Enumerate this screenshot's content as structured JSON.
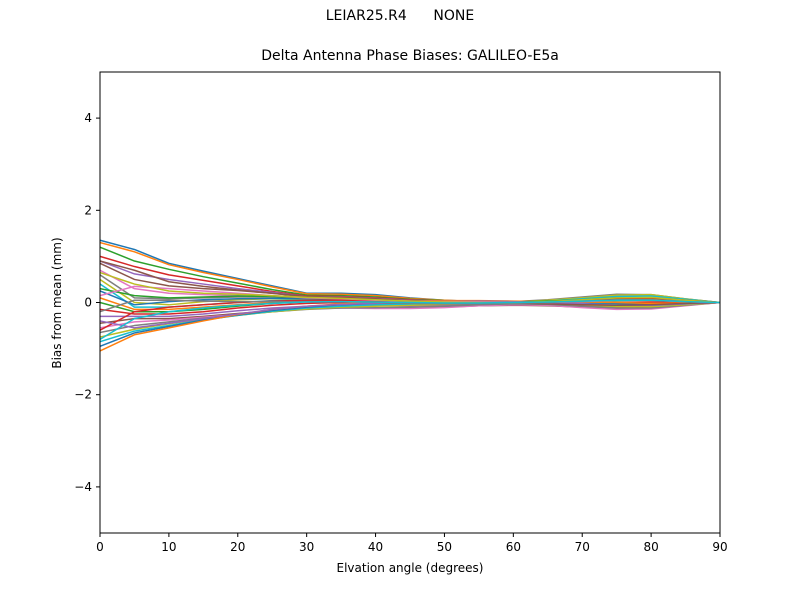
{
  "suptitle": "LEIAR25.R4      NONE",
  "chart_data": {
    "type": "line",
    "title": "Delta Antenna Phase Biases: GALILEO-E5a",
    "xlabel": "Elvation angle (degrees)",
    "ylabel": "Bias from mean (mm)",
    "xlim": [
      0,
      90
    ],
    "ylim": [
      -5,
      5
    ],
    "xticks": [
      0,
      10,
      20,
      30,
      40,
      50,
      60,
      70,
      80,
      90
    ],
    "yticks": [
      -4,
      -2,
      0,
      2,
      4
    ],
    "ytick_labels": [
      "−4",
      "−2",
      "0",
      "2",
      "4"
    ],
    "grid": false,
    "colors": [
      "#1f77b4",
      "#ff7f0e",
      "#2ca02c",
      "#d62728",
      "#9467bd",
      "#8c564b",
      "#e377c2",
      "#7f7f7f",
      "#bcbd22",
      "#17becf"
    ],
    "x": [
      0,
      5,
      10,
      15,
      20,
      25,
      30,
      35,
      40,
      45,
      50,
      55,
      60,
      65,
      70,
      75,
      80,
      85,
      90
    ],
    "series": [
      {
        "values": [
          1.35,
          1.15,
          0.85,
          0.68,
          0.52,
          0.36,
          0.2,
          0.2,
          0.17,
          0.1,
          0.05,
          0.02,
          -0.02,
          -0.06,
          -0.1,
          -0.12,
          -0.1,
          -0.05,
          0.0
        ]
      },
      {
        "values": [
          1.3,
          1.1,
          0.82,
          0.65,
          0.5,
          0.34,
          0.19,
          0.18,
          0.15,
          0.09,
          0.05,
          0.02,
          -0.01,
          -0.05,
          -0.09,
          -0.11,
          -0.09,
          -0.04,
          0.0
        ]
      },
      {
        "values": [
          1.2,
          0.9,
          0.72,
          0.56,
          0.42,
          0.28,
          0.16,
          0.15,
          0.12,
          0.07,
          0.04,
          0.02,
          0.0,
          -0.03,
          -0.06,
          -0.08,
          -0.07,
          -0.03,
          0.0
        ]
      },
      {
        "values": [
          1.0,
          0.78,
          0.6,
          0.48,
          0.36,
          0.24,
          0.14,
          0.13,
          0.1,
          0.06,
          0.03,
          0.02,
          0.01,
          0.0,
          -0.03,
          -0.05,
          -0.05,
          -0.02,
          0.0
        ]
      },
      {
        "values": [
          0.9,
          0.62,
          0.5,
          0.4,
          0.3,
          0.22,
          0.13,
          0.12,
          0.09,
          0.05,
          0.03,
          0.02,
          0.01,
          0.02,
          0.04,
          0.06,
          0.05,
          0.02,
          0.0
        ]
      },
      {
        "values": [
          0.85,
          0.5,
          0.36,
          0.3,
          0.26,
          0.2,
          0.12,
          0.1,
          0.07,
          0.04,
          0.03,
          0.02,
          0.02,
          0.04,
          0.08,
          0.12,
          0.1,
          0.05,
          0.0
        ]
      },
      {
        "values": [
          0.7,
          0.3,
          0.2,
          0.17,
          0.15,
          0.13,
          0.1,
          0.08,
          0.05,
          0.03,
          0.02,
          0.01,
          0.02,
          0.05,
          0.1,
          0.15,
          0.14,
          0.07,
          0.0
        ]
      },
      {
        "values": [
          0.6,
          0.1,
          0.08,
          0.1,
          0.12,
          0.12,
          0.1,
          0.07,
          0.04,
          0.02,
          0.01,
          0.0,
          0.02,
          0.06,
          0.12,
          0.18,
          0.17,
          0.08,
          0.0
        ]
      },
      {
        "values": [
          0.5,
          0.0,
          -0.05,
          0.02,
          0.06,
          0.08,
          0.08,
          0.06,
          0.03,
          0.01,
          0.0,
          -0.01,
          0.01,
          0.05,
          0.1,
          0.16,
          0.17,
          0.08,
          0.0
        ]
      },
      {
        "values": [
          0.4,
          -0.1,
          -0.1,
          -0.05,
          0.0,
          0.04,
          0.06,
          0.05,
          0.02,
          0.0,
          -0.01,
          -0.02,
          -0.01,
          0.03,
          0.08,
          0.13,
          0.14,
          0.07,
          0.0
        ]
      },
      {
        "values": [
          0.25,
          -0.05,
          0.02,
          0.06,
          0.08,
          0.09,
          0.09,
          0.07,
          0.04,
          0.02,
          0.01,
          0.0,
          0.0,
          0.02,
          0.05,
          0.08,
          0.08,
          0.04,
          0.0
        ]
      },
      {
        "values": [
          0.1,
          -0.15,
          -0.15,
          -0.1,
          -0.05,
          0.0,
          0.03,
          0.03,
          0.01,
          -0.01,
          -0.02,
          -0.02,
          -0.02,
          0.0,
          0.04,
          0.07,
          0.08,
          0.04,
          0.0
        ]
      },
      {
        "values": [
          0.0,
          -0.2,
          -0.2,
          -0.15,
          -0.08,
          -0.02,
          0.02,
          0.02,
          0.0,
          -0.02,
          -0.03,
          -0.03,
          -0.03,
          -0.02,
          0.01,
          0.04,
          0.05,
          0.02,
          0.0
        ]
      },
      {
        "values": [
          -0.15,
          -0.25,
          -0.25,
          -0.2,
          -0.12,
          -0.06,
          -0.02,
          0.0,
          -0.02,
          -0.04,
          -0.04,
          -0.04,
          -0.04,
          -0.03,
          -0.02,
          0.0,
          0.01,
          0.0,
          0.0
        ]
      },
      {
        "values": [
          -0.3,
          -0.3,
          -0.3,
          -0.25,
          -0.18,
          -0.12,
          -0.08,
          -0.05,
          -0.06,
          -0.07,
          -0.06,
          -0.05,
          -0.05,
          -0.05,
          -0.06,
          -0.07,
          -0.06,
          -0.03,
          0.0
        ]
      },
      {
        "values": [
          -0.45,
          -0.35,
          -0.35,
          -0.3,
          -0.24,
          -0.18,
          -0.12,
          -0.1,
          -0.12,
          -0.12,
          -0.1,
          -0.07,
          -0.06,
          -0.07,
          -0.1,
          -0.13,
          -0.12,
          -0.06,
          0.0
        ]
      },
      {
        "values": [
          -0.55,
          -0.42,
          -0.38,
          -0.32,
          -0.26,
          -0.2,
          -0.14,
          -0.12,
          -0.13,
          -0.13,
          -0.11,
          -0.07,
          -0.05,
          -0.06,
          -0.11,
          -0.15,
          -0.14,
          -0.07,
          0.0
        ]
      },
      {
        "values": [
          -0.65,
          -0.5,
          -0.42,
          -0.34,
          -0.27,
          -0.2,
          -0.15,
          -0.12,
          -0.11,
          -0.1,
          -0.08,
          -0.05,
          -0.03,
          -0.04,
          -0.08,
          -0.12,
          -0.12,
          -0.06,
          0.0
        ]
      },
      {
        "values": [
          -0.75,
          -0.58,
          -0.46,
          -0.36,
          -0.28,
          -0.2,
          -0.14,
          -0.1,
          -0.08,
          -0.06,
          -0.04,
          -0.02,
          -0.01,
          -0.02,
          -0.05,
          -0.08,
          -0.09,
          -0.05,
          0.0
        ]
      },
      {
        "values": [
          -0.85,
          -0.62,
          -0.5,
          -0.38,
          -0.28,
          -0.19,
          -0.12,
          -0.08,
          -0.05,
          -0.03,
          -0.01,
          0.0,
          0.01,
          0.0,
          -0.02,
          -0.05,
          -0.06,
          -0.03,
          0.0
        ]
      },
      {
        "values": [
          -0.95,
          -0.66,
          -0.52,
          -0.38,
          -0.27,
          -0.17,
          -0.1,
          -0.05,
          -0.02,
          0.0,
          0.02,
          0.02,
          0.02,
          0.01,
          0.0,
          -0.02,
          -0.04,
          -0.02,
          0.0
        ]
      },
      {
        "values": [
          -1.05,
          -0.7,
          -0.55,
          -0.4,
          -0.26,
          -0.15,
          -0.08,
          -0.03,
          0.01,
          0.03,
          0.04,
          0.04,
          0.03,
          0.02,
          0.01,
          0.0,
          -0.02,
          -0.01,
          0.0
        ]
      },
      {
        "values": [
          0.3,
          0.15,
          0.1,
          0.12,
          0.14,
          0.13,
          0.1,
          0.08,
          0.05,
          0.03,
          0.02,
          0.01,
          0.01,
          0.03,
          0.06,
          0.1,
          0.1,
          0.05,
          0.0
        ]
      },
      {
        "values": [
          -0.6,
          -0.2,
          -0.1,
          -0.05,
          0.0,
          0.03,
          0.05,
          0.05,
          0.03,
          0.01,
          0.0,
          -0.01,
          -0.01,
          0.01,
          0.05,
          0.09,
          0.1,
          0.05,
          0.0
        ]
      },
      {
        "values": [
          -0.4,
          -0.55,
          -0.45,
          -0.35,
          -0.25,
          -0.15,
          -0.08,
          -0.04,
          -0.02,
          0.0,
          0.02,
          0.03,
          0.02,
          0.0,
          -0.03,
          -0.06,
          -0.06,
          -0.03,
          0.0
        ]
      },
      {
        "values": [
          0.9,
          0.7,
          0.45,
          0.35,
          0.27,
          0.2,
          0.13,
          0.11,
          0.08,
          0.04,
          0.02,
          0.0,
          -0.01,
          -0.03,
          -0.05,
          -0.06,
          -0.05,
          -0.02,
          0.0
        ]
      },
      {
        "values": [
          0.15,
          0.35,
          0.3,
          0.25,
          0.2,
          0.15,
          0.1,
          0.08,
          0.05,
          0.03,
          0.02,
          0.01,
          0.0,
          0.0,
          0.02,
          0.05,
          0.05,
          0.02,
          0.0
        ]
      },
      {
        "values": [
          -0.2,
          0.05,
          0.05,
          0.03,
          0.02,
          0.02,
          0.02,
          0.02,
          0.0,
          -0.02,
          -0.03,
          -0.03,
          -0.02,
          0.0,
          0.03,
          0.06,
          0.06,
          0.03,
          0.0
        ]
      },
      {
        "values": [
          0.65,
          0.4,
          0.25,
          0.2,
          0.18,
          0.15,
          0.11,
          0.09,
          0.06,
          0.03,
          0.01,
          0.0,
          0.0,
          0.02,
          0.06,
          0.1,
          0.11,
          0.05,
          0.0
        ]
      },
      {
        "values": [
          -0.8,
          -0.35,
          -0.2,
          -0.12,
          -0.06,
          -0.02,
          0.01,
          0.02,
          0.01,
          0.0,
          -0.01,
          -0.01,
          0.0,
          0.01,
          0.03,
          0.05,
          0.05,
          0.02,
          0.0
        ]
      }
    ]
  }
}
